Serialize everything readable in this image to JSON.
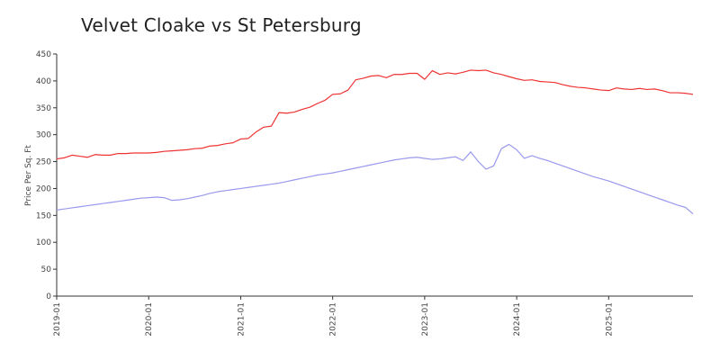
{
  "chart_data": {
    "type": "line",
    "title": "Velvet Cloake vs St Petersburg",
    "xlabel": "",
    "ylabel": "Price Per Sq. Ft",
    "ylim": [
      0,
      450
    ],
    "xlim": [
      "2019-01",
      "2025-12"
    ],
    "yticks": [
      0,
      50,
      100,
      150,
      200,
      250,
      300,
      350,
      400,
      450
    ],
    "xticks": [
      "2019-01",
      "2020-01",
      "2021-01",
      "2022-01",
      "2023-01",
      "2024-01",
      "2025-01"
    ],
    "grid": false,
    "legend": "none",
    "series": [
      {
        "color": "#ee3333",
        "x": [
          "2019-01",
          "2019-02",
          "2019-03",
          "2019-04",
          "2019-05",
          "2019-06",
          "2019-07",
          "2019-08",
          "2019-09",
          "2019-10",
          "2019-11",
          "2019-12",
          "2020-01",
          "2020-02",
          "2020-03",
          "2020-04",
          "2020-05",
          "2020-06",
          "2020-07",
          "2020-08",
          "2020-09",
          "2020-10",
          "2020-11",
          "2020-12",
          "2021-01",
          "2021-02",
          "2021-03",
          "2021-04",
          "2021-05",
          "2021-06",
          "2021-07",
          "2021-08",
          "2021-09",
          "2021-10",
          "2021-11",
          "2021-12",
          "2022-01",
          "2022-02",
          "2022-03",
          "2022-04",
          "2022-05",
          "2022-06",
          "2022-07",
          "2022-08",
          "2022-09",
          "2022-10",
          "2022-11",
          "2022-12",
          "2023-01",
          "2023-02",
          "2023-03",
          "2023-04",
          "2023-05",
          "2023-06",
          "2023-07",
          "2023-08",
          "2023-09",
          "2023-10",
          "2023-11",
          "2023-12",
          "2024-01",
          "2024-02",
          "2024-03",
          "2024-04",
          "2024-05",
          "2024-06",
          "2024-07",
          "2024-08",
          "2024-09",
          "2024-10",
          "2024-11",
          "2024-12",
          "2025-01",
          "2025-02",
          "2025-03",
          "2025-04",
          "2025-05",
          "2025-06",
          "2025-07",
          "2025-08",
          "2025-09",
          "2025-10",
          "2025-11",
          "2025-12"
        ],
        "values": [
          255,
          257,
          262,
          260,
          258,
          263,
          262,
          262,
          265,
          265,
          266,
          266,
          266,
          267,
          269,
          270,
          271,
          272,
          274,
          275,
          279,
          280,
          283,
          285,
          292,
          293,
          305,
          314,
          316,
          341,
          340,
          342,
          347,
          351,
          358,
          364,
          375,
          376,
          383,
          402,
          405,
          409,
          410,
          406,
          412,
          412,
          414,
          414,
          403,
          419,
          412,
          415,
          413,
          416,
          420,
          419,
          420,
          415,
          412,
          408,
          404,
          401,
          402,
          399,
          398,
          397,
          393,
          390,
          388,
          387,
          385,
          383,
          382,
          387,
          385,
          384,
          386,
          384,
          385,
          382,
          378,
          378,
          377,
          375
        ]
      },
      {
        "color": "#9999ee",
        "x": [
          "2019-01",
          "2019-02",
          "2019-03",
          "2019-04",
          "2019-05",
          "2019-06",
          "2019-07",
          "2019-08",
          "2019-09",
          "2019-10",
          "2019-11",
          "2019-12",
          "2020-01",
          "2020-02",
          "2020-03",
          "2020-04",
          "2020-05",
          "2020-06",
          "2020-07",
          "2020-08",
          "2020-09",
          "2020-10",
          "2020-11",
          "2020-12",
          "2021-01",
          "2021-02",
          "2021-03",
          "2021-04",
          "2021-05",
          "2021-06",
          "2021-07",
          "2021-08",
          "2021-09",
          "2021-10",
          "2021-11",
          "2021-12",
          "2022-01",
          "2022-02",
          "2022-03",
          "2022-04",
          "2022-05",
          "2022-06",
          "2022-07",
          "2022-08",
          "2022-09",
          "2022-10",
          "2022-11",
          "2022-12",
          "2023-01",
          "2023-02",
          "2023-03",
          "2023-04",
          "2023-05",
          "2023-06",
          "2023-07",
          "2023-08",
          "2023-09",
          "2023-10",
          "2023-11",
          "2023-12",
          "2024-01",
          "2024-02",
          "2024-03",
          "2024-04",
          "2024-05",
          "2024-06",
          "2024-07",
          "2024-08",
          "2024-09",
          "2024-10",
          "2024-11",
          "2024-12",
          "2025-01",
          "2025-02",
          "2025-03",
          "2025-04",
          "2025-05",
          "2025-06",
          "2025-07",
          "2025-08",
          "2025-09",
          "2025-10",
          "2025-11",
          "2025-12"
        ],
        "values": [
          160,
          162,
          164,
          166,
          168,
          170,
          172,
          174,
          176,
          178,
          180,
          182,
          183,
          184,
          183,
          178,
          179,
          181,
          184,
          187,
          191,
          194,
          196,
          198,
          200,
          202,
          204,
          206,
          208,
          210,
          213,
          216,
          219,
          222,
          225,
          227,
          229,
          232,
          235,
          238,
          241,
          244,
          247,
          250,
          253,
          255,
          257,
          258,
          256,
          254,
          255,
          257,
          259,
          252,
          268,
          250,
          236,
          242,
          274,
          282,
          272,
          256,
          261,
          256,
          252,
          247,
          242,
          237,
          232,
          227,
          222,
          218,
          214,
          209,
          204,
          199,
          194,
          189,
          184,
          179,
          174,
          169,
          165,
          153
        ]
      }
    ]
  }
}
